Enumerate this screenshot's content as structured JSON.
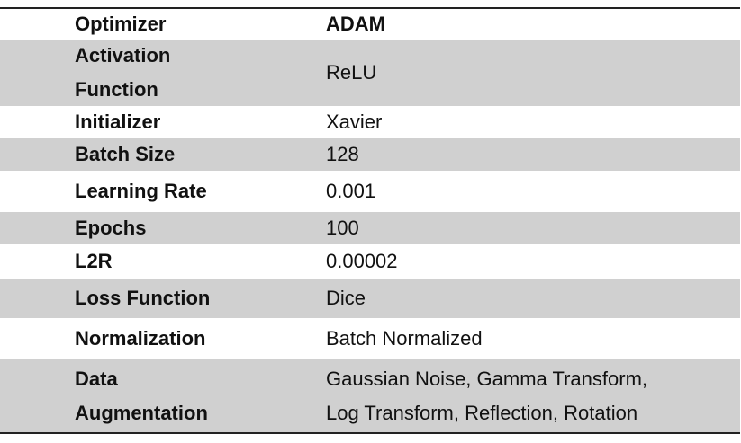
{
  "table": {
    "rows": [
      [
        [
          "Optimizer"
        ],
        [
          "ADAM"
        ]
      ],
      [
        [
          "Activation",
          "Function"
        ],
        [
          "ReLU"
        ]
      ],
      [
        [
          "Initializer"
        ],
        [
          "Xavier"
        ]
      ],
      [
        [
          "Batch Size"
        ],
        [
          "128"
        ]
      ],
      [
        [
          "Learning Rate"
        ],
        [
          "0.001"
        ]
      ],
      [
        [
          "Epochs"
        ],
        [
          "100"
        ]
      ],
      [
        [
          "L2R"
        ],
        [
          "0.00002"
        ]
      ],
      [
        [
          "Loss Function"
        ],
        [
          "Dice"
        ]
      ],
      [
        [
          "Normalization"
        ],
        [
          "Batch Normalized"
        ]
      ],
      [
        [
          "Data",
          "Augmentation"
        ],
        [
          "Gaussian Noise, Gamma Transform,",
          "Log Transform, Reflection, Rotation"
        ]
      ]
    ]
  }
}
